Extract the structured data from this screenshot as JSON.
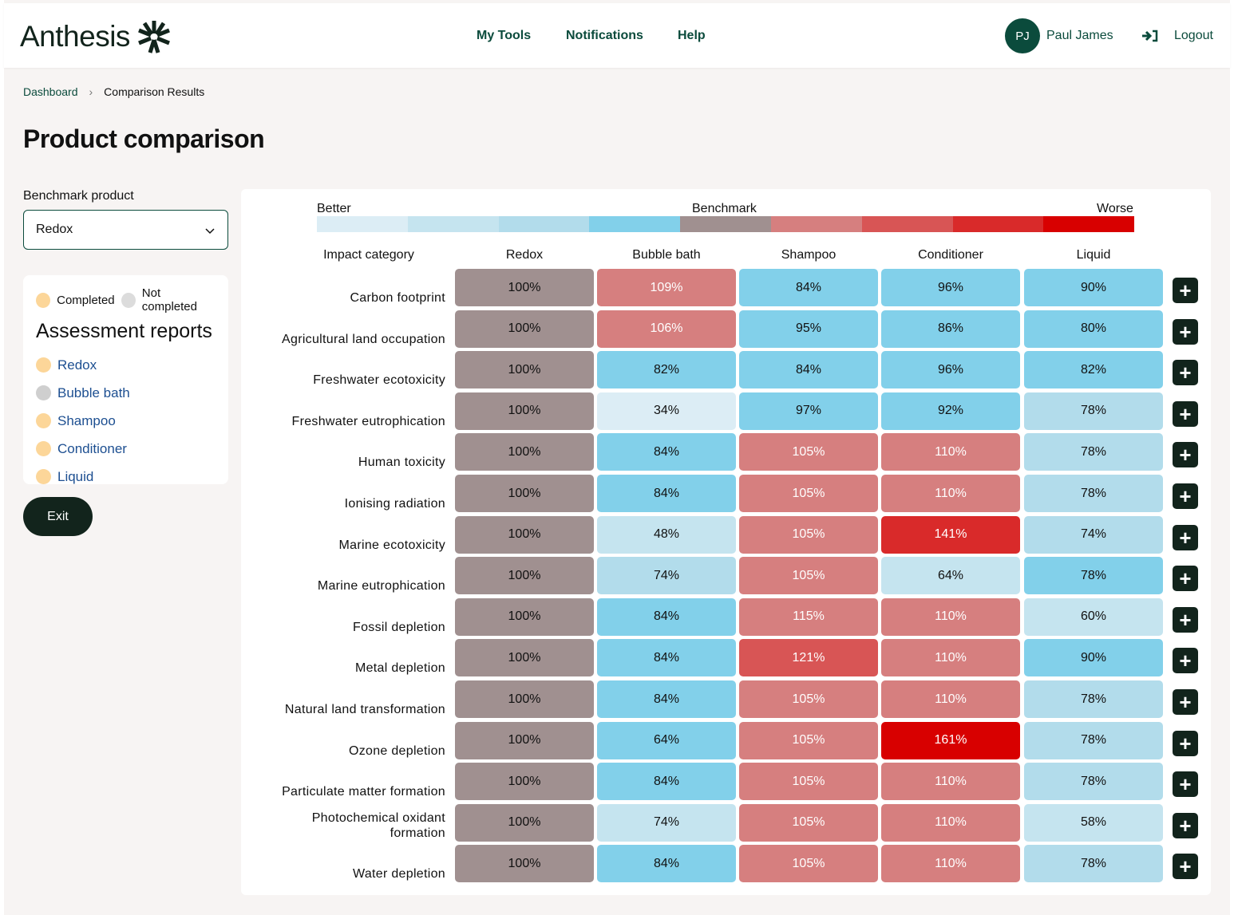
{
  "header": {
    "brand": "Anthesis",
    "nav": [
      "My Tools",
      "Notifications",
      "Help"
    ],
    "user_initials": "PJ",
    "user_name": "Paul James",
    "logout": "Logout"
  },
  "breadcrumb": {
    "home": "Dashboard",
    "current": "Comparison Results"
  },
  "title": "Product comparison",
  "benchmark": {
    "label": "Benchmark product",
    "value": "Redox"
  },
  "reports": {
    "completed": "Completed",
    "not_completed": "Not completed",
    "title": "Assessment reports",
    "items": [
      {
        "name": "Redox",
        "status": "completed"
      },
      {
        "name": "Bubble bath",
        "status": "not_completed"
      },
      {
        "name": "Shampoo",
        "status": "completed"
      },
      {
        "name": "Conditioner",
        "status": "completed"
      },
      {
        "name": "Liquid",
        "status": "completed"
      }
    ]
  },
  "exit": "Exit",
  "scale": {
    "better": "Better",
    "benchmark": "Benchmark",
    "worse": "Worse",
    "colors": [
      "#dcedf5",
      "#c5e4ef",
      "#b2dceb",
      "#82d0ea",
      "#a09090",
      "#d67f7f",
      "#d85555",
      "#d92a2a",
      "#d80000"
    ]
  },
  "chart_data": {
    "type": "heatmap",
    "title": "",
    "xlabel": "",
    "ylabel": "Impact category",
    "header": "Impact category",
    "columns": [
      "Redox",
      "Bubble bath",
      "Shampoo",
      "Conditioner",
      "Liquid"
    ],
    "rows": [
      {
        "label": "Carbon footprint",
        "values": [
          "100%",
          "109%",
          "84%",
          "96%",
          "90%"
        ],
        "levels": [
          0,
          1,
          -1,
          -1,
          -1
        ]
      },
      {
        "label": "Agricultural land occupation",
        "values": [
          "100%",
          "106%",
          "95%",
          "86%",
          "80%"
        ],
        "levels": [
          0,
          1,
          -1,
          -1,
          -1
        ]
      },
      {
        "label": "Freshwater ecotoxicity",
        "values": [
          "100%",
          "82%",
          "84%",
          "96%",
          "82%"
        ],
        "levels": [
          0,
          -1,
          -1,
          -1,
          -1
        ]
      },
      {
        "label": "Freshwater eutrophication",
        "values": [
          "100%",
          "34%",
          "97%",
          "92%",
          "78%"
        ],
        "levels": [
          0,
          -4,
          -1,
          -1,
          -2
        ]
      },
      {
        "label": "Human toxicity",
        "values": [
          "100%",
          "84%",
          "105%",
          "110%",
          "78%"
        ],
        "levels": [
          0,
          -1,
          1,
          1,
          -2
        ]
      },
      {
        "label": "Ionising radiation",
        "values": [
          "100%",
          "84%",
          "105%",
          "110%",
          "78%"
        ],
        "levels": [
          0,
          -1,
          1,
          1,
          -2
        ]
      },
      {
        "label": "Marine ecotoxicity",
        "values": [
          "100%",
          "48%",
          "105%",
          "141%",
          "74%"
        ],
        "levels": [
          0,
          -3,
          1,
          3,
          -2
        ]
      },
      {
        "label": "Marine eutrophication",
        "values": [
          "100%",
          "74%",
          "105%",
          "64%",
          "78%"
        ],
        "levels": [
          0,
          -2,
          1,
          -3,
          -1
        ]
      },
      {
        "label": "Fossil depletion",
        "values": [
          "100%",
          "84%",
          "115%",
          "110%",
          "60%"
        ],
        "levels": [
          0,
          -1,
          1,
          1,
          -3
        ]
      },
      {
        "label": "Metal depletion",
        "values": [
          "100%",
          "84%",
          "121%",
          "110%",
          "90%"
        ],
        "levels": [
          0,
          -1,
          2,
          1,
          -1
        ]
      },
      {
        "label": "Natural land transformation",
        "values": [
          "100%",
          "84%",
          "105%",
          "110%",
          "78%"
        ],
        "levels": [
          0,
          -1,
          1,
          1,
          -2
        ]
      },
      {
        "label": "Ozone depletion",
        "values": [
          "100%",
          "64%",
          "105%",
          "161%",
          "78%"
        ],
        "levels": [
          0,
          -1,
          1,
          4,
          -2
        ]
      },
      {
        "label": "Particulate matter formation",
        "values": [
          "100%",
          "84%",
          "105%",
          "110%",
          "78%"
        ],
        "levels": [
          0,
          -1,
          1,
          1,
          -2
        ]
      },
      {
        "label": "Photochemical oxidant formation",
        "values": [
          "100%",
          "74%",
          "105%",
          "110%",
          "58%"
        ],
        "levels": [
          0,
          -3,
          1,
          1,
          -3
        ]
      },
      {
        "label": "Water depletion",
        "values": [
          "100%",
          "84%",
          "105%",
          "110%",
          "78%"
        ],
        "levels": [
          0,
          -1,
          1,
          1,
          -2
        ]
      }
    ]
  }
}
